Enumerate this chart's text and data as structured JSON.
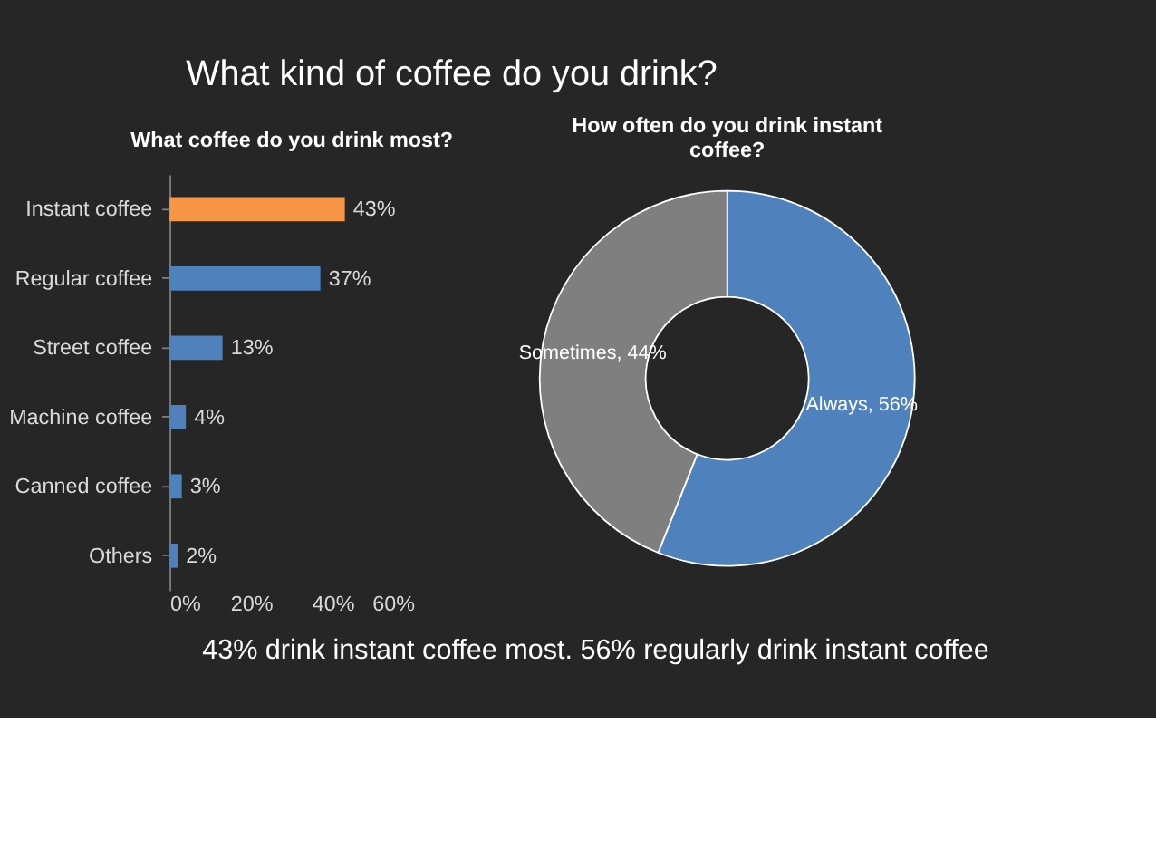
{
  "chart_data": [
    {
      "type": "other",
      "title": "What kind of coffee do you drink?",
      "annotations": [
        "43% drink instant coffee most. 56% regularly drink instant coffee"
      ]
    },
    {
      "type": "bar",
      "orientation": "horizontal",
      "title": "What coffee do you drink most?",
      "categories": [
        "Instant coffee",
        "Regular coffee",
        "Street coffee",
        "Machine coffee",
        "Canned coffee",
        "Others"
      ],
      "values": [
        43,
        37,
        13,
        4,
        3,
        2
      ],
      "colors": [
        "#f79646",
        "#4f81bd",
        "#4f81bd",
        "#4f81bd",
        "#4f81bd",
        "#4f81bd"
      ],
      "value_labels": [
        "43%",
        "37%",
        "13%",
        "4%",
        "3%",
        "2%"
      ],
      "xlim": [
        0,
        60
      ],
      "xticks": [
        {
          "value": 0,
          "label": "0%"
        },
        {
          "value": 20,
          "label": "20%"
        },
        {
          "value": 40,
          "label": "40%"
        },
        {
          "value": 60,
          "label": "60%"
        }
      ],
      "grid": false,
      "legend": false
    },
    {
      "type": "donut",
      "title": "How often do you drink instant coffee?",
      "categories": [
        "Always",
        "Sometimes"
      ],
      "values": [
        56,
        44
      ],
      "colors": [
        "#4f81bd",
        "#7f7f7f"
      ],
      "value_labels": [
        "56%",
        "44%"
      ],
      "legend": false
    }
  ]
}
